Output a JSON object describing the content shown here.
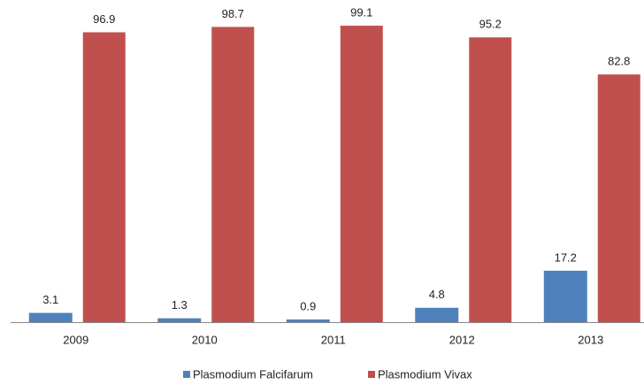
{
  "chart_data": {
    "type": "bar",
    "categories": [
      "2009",
      "2010",
      "2011",
      "2012",
      "2013"
    ],
    "series": [
      {
        "name": "Plasmodium Falcifarum",
        "color": "#4f81bd",
        "values": [
          3.1,
          1.3,
          0.9,
          4.8,
          17.2
        ]
      },
      {
        "name": "Plasmodium Vivax",
        "color": "#c0504d",
        "values": [
          96.9,
          98.7,
          99.1,
          95.2,
          82.8
        ]
      }
    ],
    "ylim": [
      0,
      100
    ]
  }
}
